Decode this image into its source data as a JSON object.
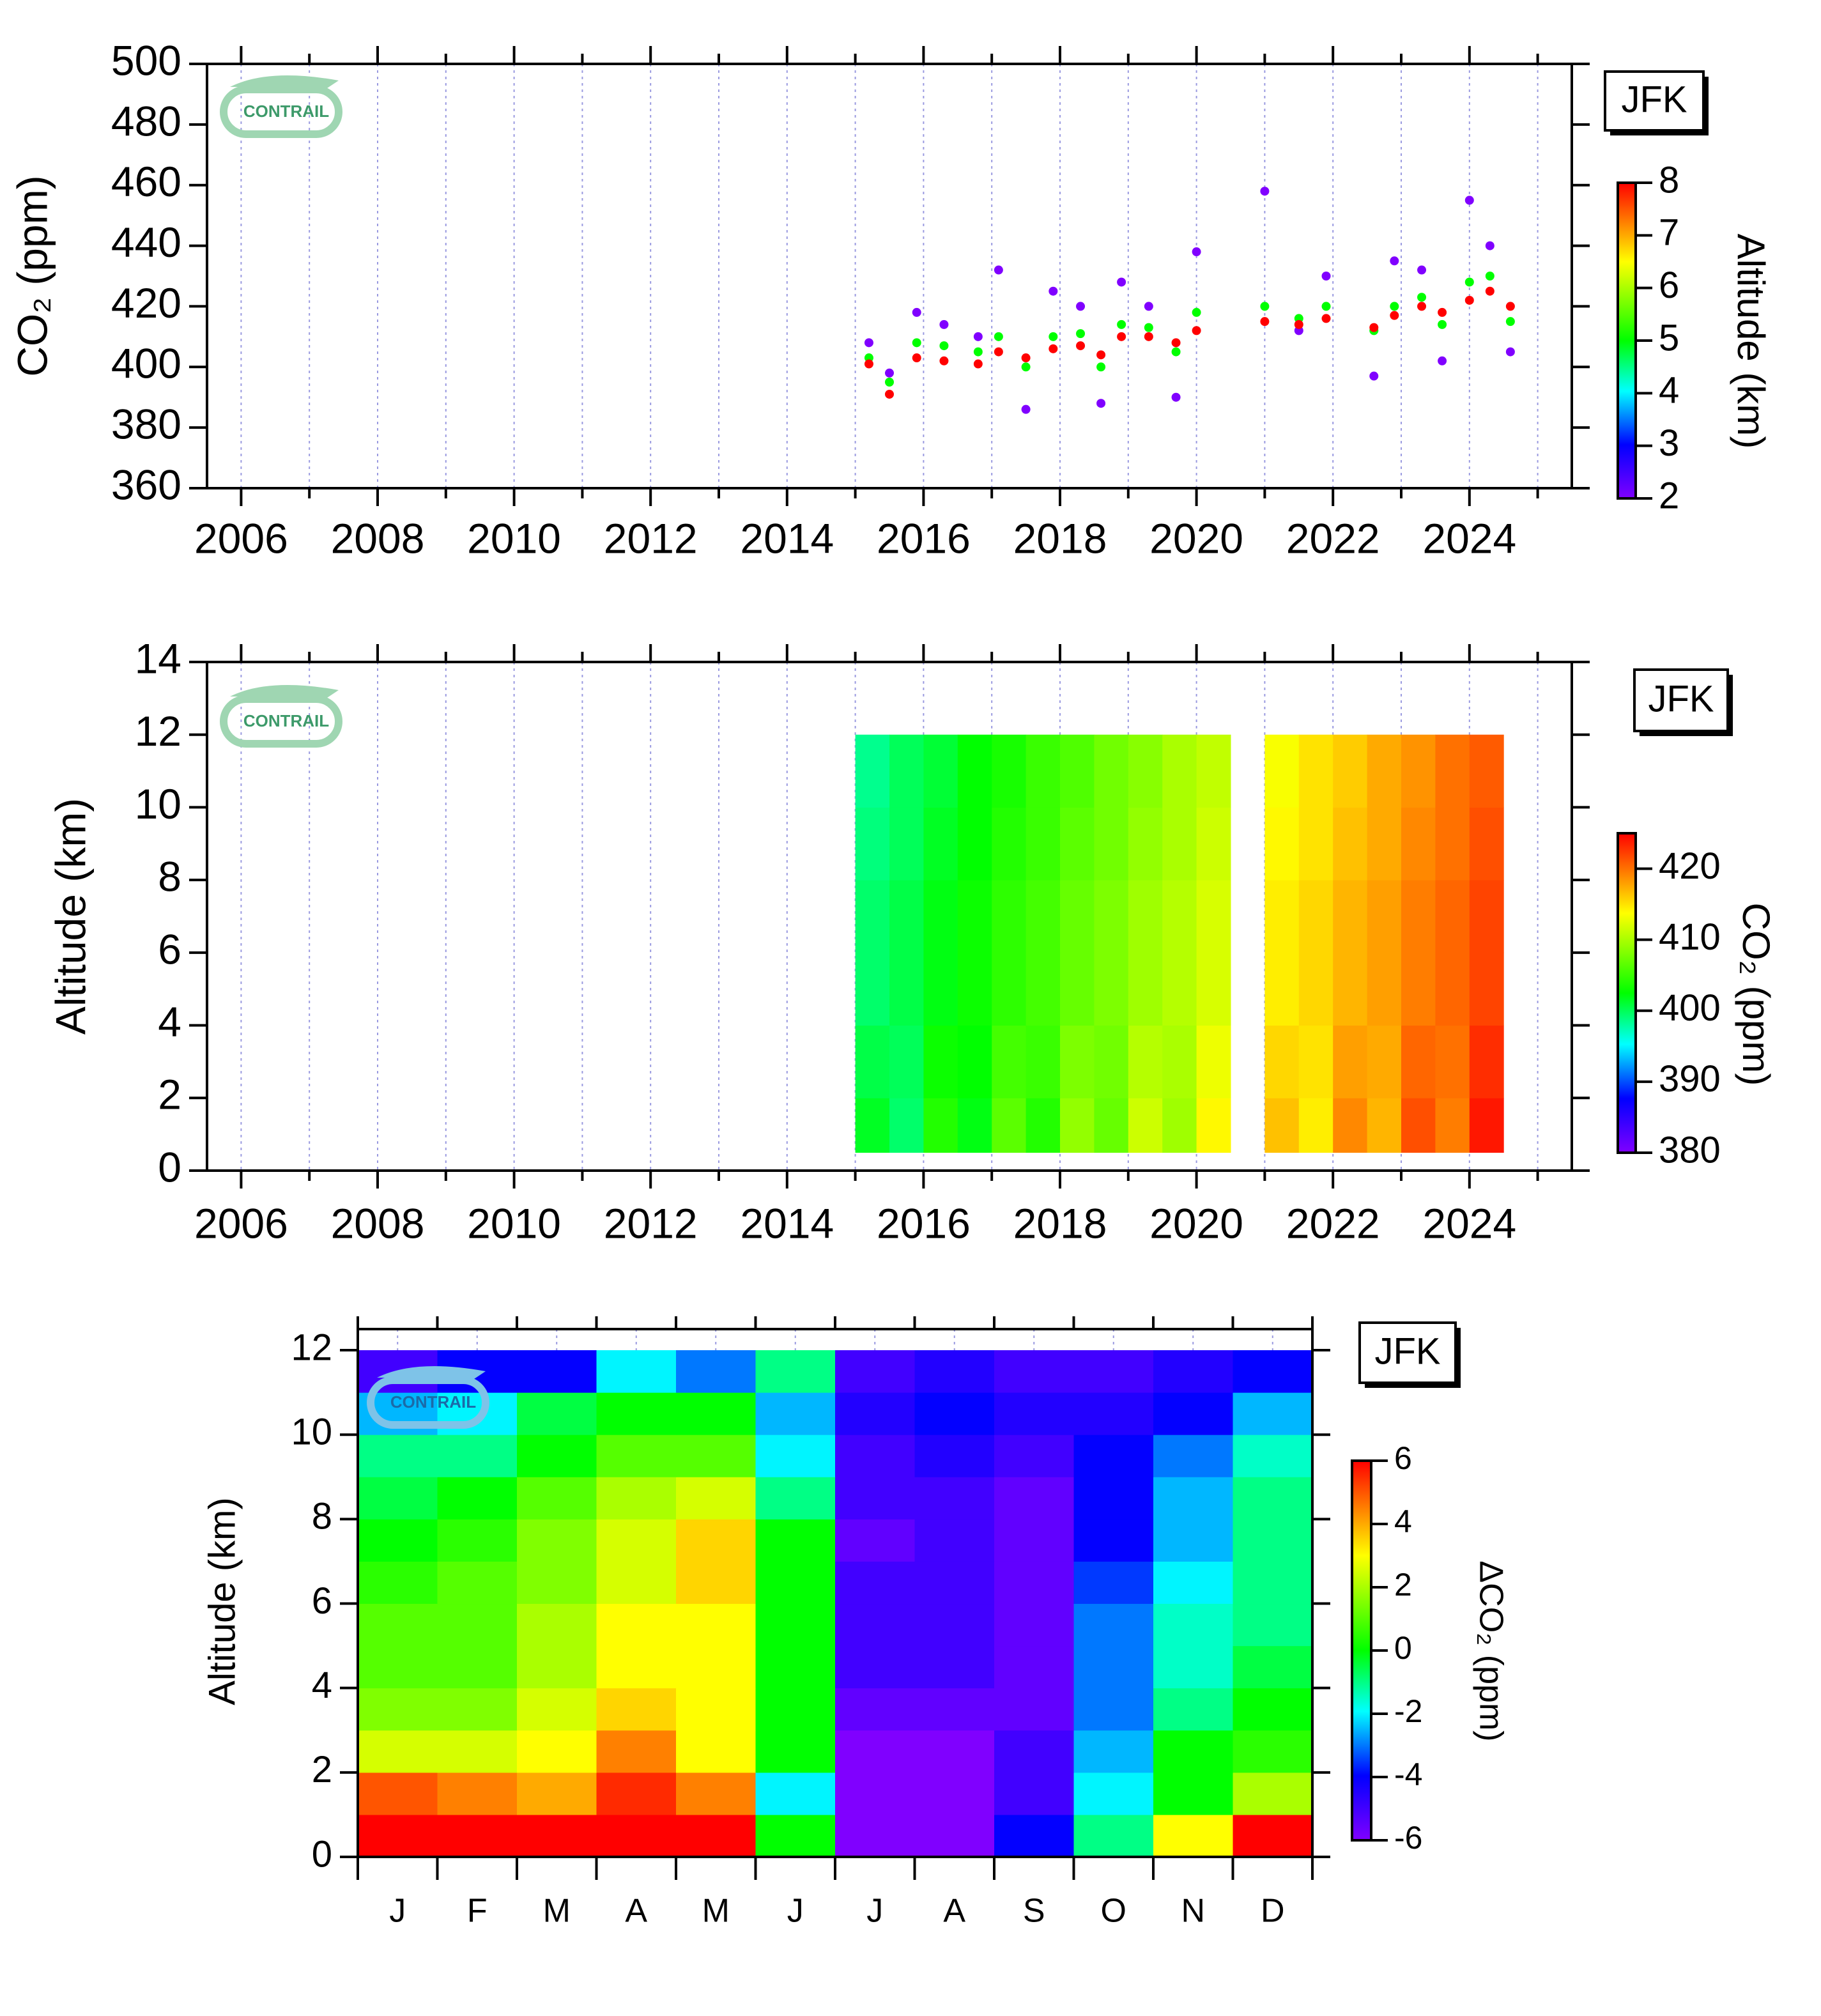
{
  "chart_data": [
    {
      "type": "scatter",
      "ylabel": "CO₂ (ppm)",
      "station": "JFK",
      "logo": "CONTRAIL",
      "xlim": [
        2005.5,
        2025.5
      ],
      "xticks": [
        2006,
        2008,
        2010,
        2012,
        2014,
        2016,
        2018,
        2020,
        2022,
        2024
      ],
      "xminor": [
        2007,
        2009,
        2011,
        2013,
        2015,
        2017,
        2019,
        2021,
        2023,
        2025
      ],
      "ylim": [
        360,
        500
      ],
      "yticks": [
        360,
        380,
        400,
        420,
        440,
        460,
        480,
        500
      ],
      "grid": true,
      "x": [
        2015.2,
        2015.2,
        2015.2,
        2015.5,
        2015.5,
        2015.5,
        2015.9,
        2015.9,
        2015.9,
        2016.3,
        2016.3,
        2016.3,
        2016.8,
        2016.8,
        2016.8,
        2017.1,
        2017.1,
        2017.1,
        2017.5,
        2017.5,
        2017.5,
        2017.9,
        2017.9,
        2017.9,
        2018.3,
        2018.3,
        2018.3,
        2018.6,
        2018.6,
        2018.6,
        2018.9,
        2018.9,
        2018.9,
        2019.3,
        2019.3,
        2019.3,
        2019.7,
        2019.7,
        2019.7,
        2020.0,
        2020.0,
        2020.0,
        2021.0,
        2021.0,
        2021.0,
        2021.5,
        2021.5,
        2021.5,
        2021.9,
        2021.9,
        2021.9,
        2022.6,
        2022.6,
        2022.6,
        2022.9,
        2022.9,
        2022.9,
        2023.3,
        2023.3,
        2023.3,
        2023.6,
        2023.6,
        2023.6,
        2024.0,
        2024.0,
        2024.0,
        2024.3,
        2024.3,
        2024.3,
        2024.6,
        2024.6,
        2024.6
      ],
      "y": [
        408,
        403,
        401,
        398,
        395,
        391,
        418,
        408,
        403,
        414,
        407,
        402,
        410,
        405,
        401,
        432,
        410,
        405,
        386,
        400,
        403,
        425,
        410,
        406,
        420,
        411,
        407,
        388,
        400,
        404,
        428,
        414,
        410,
        420,
        413,
        410,
        390,
        405,
        408,
        438,
        418,
        412,
        458,
        420,
        415,
        412,
        416,
        414,
        430,
        420,
        416,
        397,
        412,
        413,
        435,
        420,
        417,
        432,
        423,
        420,
        402,
        414,
        418,
        455,
        428,
        422,
        440,
        430,
        425,
        405,
        415,
        420
      ],
      "color_values": [
        2,
        5,
        8,
        2,
        5,
        8,
        2,
        5,
        8,
        2,
        5,
        8,
        2,
        5,
        8,
        2,
        5,
        8,
        2,
        5,
        8,
        2,
        5,
        8,
        2,
        5,
        8,
        2,
        5,
        8,
        2,
        5,
        8,
        2,
        5,
        8,
        2,
        5,
        8,
        2,
        5,
        8,
        2,
        5,
        8,
        2,
        5,
        8,
        2,
        5,
        8,
        2,
        5,
        8,
        2,
        5,
        8,
        2,
        5,
        8,
        2,
        5,
        8,
        2,
        5,
        8,
        2,
        5,
        8,
        2,
        5,
        8
      ],
      "colorbar": {
        "label": "Altitude (km)",
        "lim": [
          2,
          8
        ],
        "ticks": [
          2,
          3,
          4,
          5,
          6,
          7,
          8
        ]
      }
    },
    {
      "type": "heatmap",
      "ylabel": "Altitude (km)",
      "station": "JFK",
      "logo": "CONTRAIL",
      "xlim": [
        2005.5,
        2025.5
      ],
      "xticks": [
        2006,
        2008,
        2010,
        2012,
        2014,
        2016,
        2018,
        2020,
        2022,
        2024
      ],
      "xminor": [
        2007,
        2009,
        2011,
        2013,
        2015,
        2017,
        2019,
        2021,
        2023,
        2025
      ],
      "ylim": [
        0,
        14
      ],
      "yticks": [
        0,
        2,
        4,
        6,
        8,
        10,
        12,
        14
      ],
      "grid": true,
      "x_edges": [
        2015.0,
        2015.5,
        2016.0,
        2016.5,
        2017.0,
        2017.5,
        2018.0,
        2018.5,
        2019.0,
        2019.5,
        2020.0,
        2020.5,
        2021.0,
        2021.5,
        2022.0,
        2022.5,
        2023.0,
        2023.5,
        2024.0,
        2024.5
      ],
      "y_edges": [
        0.5,
        2,
        4,
        6,
        8,
        10,
        12
      ],
      "z": [
        [
          401.5,
          399.5,
          404,
          402,
          406.5,
          404,
          409,
          407,
          411.5,
          409.5,
          414,
          null,
          416.5,
          414.5,
          419,
          417,
          421.5,
          419.5,
          424
        ],
        [
          400.5,
          400,
          403,
          402.5,
          405.5,
          405,
          408,
          407.5,
          410.5,
          410,
          413,
          null,
          415.5,
          415,
          418,
          417.5,
          420.5,
          420,
          423
        ],
        [
          399.5,
          400.5,
          402,
          403,
          404.5,
          405.5,
          407,
          408,
          409.5,
          410.5,
          412,
          null,
          414.5,
          415.5,
          417,
          418,
          419.5,
          420.5,
          422
        ],
        [
          399.5,
          400.5,
          402,
          403,
          404.5,
          405.5,
          407,
          408,
          409.5,
          410.5,
          412,
          null,
          414.5,
          415.5,
          417,
          418,
          419.5,
          420.5,
          422
        ],
        [
          399,
          400,
          401.5,
          402.5,
          404,
          405,
          406.5,
          407.5,
          409,
          410,
          411.5,
          null,
          414,
          415,
          416.5,
          417.5,
          419,
          420,
          421.5
        ],
        [
          398.5,
          400,
          401,
          402.5,
          403.5,
          405,
          406,
          407.5,
          408.5,
          410,
          411,
          null,
          413.5,
          415,
          416,
          417.5,
          418.5,
          420,
          421
        ]
      ],
      "colorbar": {
        "label": "CO₂ (ppm)",
        "lim": [
          380,
          425
        ],
        "ticks": [
          380,
          390,
          400,
          410,
          420
        ]
      }
    },
    {
      "type": "heatmap",
      "ylabel": "Altitude (km)",
      "station": "JFK",
      "logo": "CONTRAIL",
      "categories": [
        "J",
        "F",
        "M",
        "A",
        "M",
        "J",
        "J",
        "A",
        "S",
        "O",
        "N",
        "D"
      ],
      "ylim": [
        0,
        12.5
      ],
      "yticks": [
        0,
        2,
        4,
        6,
        8,
        10,
        12
      ],
      "grid": true,
      "y_edges": [
        0,
        1,
        2,
        3,
        4,
        5,
        6,
        7,
        8,
        9,
        10,
        11,
        12
      ],
      "z": [
        [
          6,
          6,
          6,
          6,
          6,
          0,
          -6,
          -6,
          -4,
          -1,
          3,
          6
        ],
        [
          5,
          4.5,
          4,
          5.5,
          4.5,
          -2,
          -6,
          -6,
          -5,
          -2,
          0,
          2
        ],
        [
          2.5,
          2.5,
          3,
          4.5,
          3,
          0,
          -6,
          -6,
          -5,
          -2.5,
          0,
          0.5
        ],
        [
          1.5,
          1.5,
          2.5,
          3.5,
          3,
          0,
          -5.5,
          -5.5,
          -5.5,
          -3,
          -1,
          0
        ],
        [
          1,
          1,
          2,
          3,
          3,
          0,
          -5,
          -5,
          -5.5,
          -3,
          -1.5,
          -0.5
        ],
        [
          1,
          1,
          2,
          3,
          3,
          0,
          -5,
          -5,
          -5.5,
          -3,
          -1.5,
          -1
        ],
        [
          0.5,
          1,
          1.5,
          2.5,
          3.5,
          0,
          -5,
          -5,
          -5.5,
          -3.5,
          -2,
          -1
        ],
        [
          0,
          0.5,
          1.5,
          2.5,
          3.5,
          0,
          -5.5,
          -5,
          -5.5,
          -4,
          -2.5,
          -1
        ],
        [
          -0.5,
          0,
          1,
          2,
          2.5,
          -1,
          -5,
          -5,
          -5.5,
          -4,
          -2.5,
          -1
        ],
        [
          -1,
          -1,
          0,
          1,
          1,
          -2,
          -5,
          -4.5,
          -5,
          -4,
          -3,
          -1.5
        ],
        [
          -2.5,
          -2,
          -0.5,
          0,
          0,
          -2.5,
          -4.5,
          -4,
          -4.5,
          -4.5,
          -4,
          -2.5
        ],
        [
          -5,
          -4,
          -4,
          -2,
          -3,
          -1,
          -5,
          -4.5,
          -5,
          -5,
          -4.5,
          -4
        ]
      ],
      "colorbar": {
        "label": "ΔCO₂ (ppm)",
        "lim": [
          -6,
          6
        ],
        "ticks": [
          -6,
          -4,
          -2,
          0,
          2,
          4,
          6
        ]
      }
    }
  ]
}
